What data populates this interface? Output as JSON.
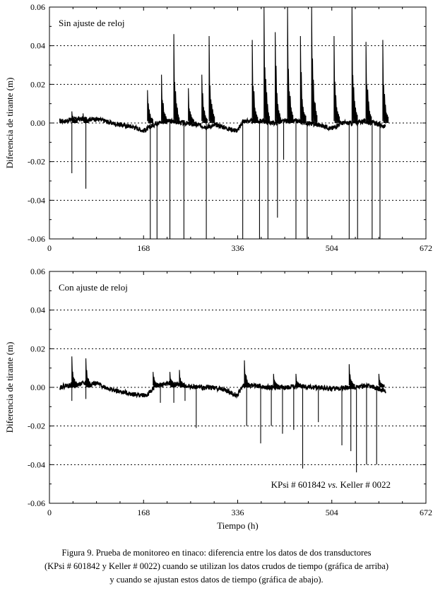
{
  "chart_data": [
    {
      "type": "line",
      "annotation": "Sin ajuste de reloj",
      "ylabel": "Diferencia de tirante (m)",
      "xlabel": "",
      "xlim": [
        0,
        672
      ],
      "ylim": [
        -0.06,
        0.06
      ],
      "x_ticks": [
        0,
        168,
        336,
        504,
        672
      ],
      "x_tick_labels": [
        "0",
        "168",
        "336",
        "504",
        "672"
      ],
      "y_ticks": [
        -0.06,
        -0.04,
        -0.02,
        0.0,
        0.02,
        0.04,
        0.06
      ],
      "y_tick_labels": [
        "-0.06",
        "-0.04",
        "-0.02",
        "0.00",
        "0.02",
        "0.04",
        "0.06"
      ],
      "grid": "dotted horizontal",
      "baseline": [
        [
          18,
          0.001
        ],
        [
          30,
          0.001
        ],
        [
          40,
          0.002
        ],
        [
          60,
          0.002
        ],
        [
          85,
          0.002
        ],
        [
          100,
          0.001
        ],
        [
          110,
          0.0
        ],
        [
          130,
          -0.001
        ],
        [
          150,
          -0.002
        ],
        [
          168,
          -0.004
        ],
        [
          175,
          -0.003
        ],
        [
          190,
          0.0
        ],
        [
          215,
          0.001
        ],
        [
          240,
          0.0
        ],
        [
          265,
          -0.001
        ],
        [
          280,
          -0.002
        ],
        [
          300,
          -0.001
        ],
        [
          310,
          -0.002
        ],
        [
          320,
          -0.003
        ],
        [
          336,
          -0.004
        ],
        [
          345,
          0.001
        ],
        [
          360,
          0.001
        ],
        [
          380,
          0.001
        ],
        [
          400,
          0.0
        ],
        [
          420,
          0.001
        ],
        [
          440,
          0.001
        ],
        [
          460,
          0.0
        ],
        [
          480,
          -0.001
        ],
        [
          495,
          -0.002
        ],
        [
          504,
          -0.003
        ],
        [
          520,
          0.0
        ],
        [
          540,
          0.0
        ],
        [
          560,
          0.001
        ],
        [
          580,
          0.0
        ],
        [
          600,
          -0.002
        ]
      ],
      "up_spikes": [
        [
          40,
          0.006
        ],
        [
          60,
          0.005
        ],
        [
          175,
          0.017
        ],
        [
          200,
          0.025
        ],
        [
          222,
          0.046
        ],
        [
          248,
          0.018
        ],
        [
          272,
          0.025
        ],
        [
          285,
          0.045
        ],
        [
          362,
          0.043
        ],
        [
          383,
          0.06
        ],
        [
          403,
          0.047
        ],
        [
          425,
          0.06
        ],
        [
          448,
          0.045
        ],
        [
          468,
          0.06
        ],
        [
          508,
          0.045
        ],
        [
          540,
          0.06
        ],
        [
          565,
          0.042
        ],
        [
          595,
          0.043
        ]
      ],
      "down_spikes": [
        [
          40,
          -0.026
        ],
        [
          65,
          -0.034
        ],
        [
          180,
          -0.06
        ],
        [
          192,
          -0.06
        ],
        [
          215,
          -0.06
        ],
        [
          240,
          -0.06
        ],
        [
          280,
          -0.06
        ],
        [
          345,
          -0.06
        ],
        [
          375,
          -0.06
        ],
        [
          390,
          -0.06
        ],
        [
          407,
          -0.049
        ],
        [
          418,
          -0.019
        ],
        [
          440,
          -0.06
        ],
        [
          460,
          -0.06
        ],
        [
          535,
          -0.06
        ],
        [
          550,
          -0.06
        ],
        [
          576,
          -0.06
        ],
        [
          590,
          -0.06
        ]
      ]
    },
    {
      "type": "line",
      "annotation": "Con ajuste de reloj",
      "legend_text": "KPsi # 601842 vs. Keller # 0022",
      "ylabel": "Diferencia de tirante (m)",
      "xlabel": "Tiempo (h)",
      "xlim": [
        0,
        672
      ],
      "ylim": [
        -0.06,
        0.06
      ],
      "x_ticks": [
        0,
        168,
        336,
        504,
        672
      ],
      "x_tick_labels": [
        "0",
        "168",
        "336",
        "504",
        "672"
      ],
      "y_ticks": [
        -0.06,
        -0.04,
        -0.02,
        0.0,
        0.02,
        0.04,
        0.06
      ],
      "y_tick_labels": [
        "-0.06",
        "-0.04",
        "-0.02",
        "0.00",
        "0.02",
        "0.04",
        "0.06"
      ],
      "grid": "dotted horizontal",
      "baseline": [
        [
          18,
          0.0
        ],
        [
          30,
          0.001
        ],
        [
          40,
          0.001
        ],
        [
          60,
          0.002
        ],
        [
          85,
          0.002
        ],
        [
          100,
          0.0
        ],
        [
          120,
          -0.002
        ],
        [
          140,
          -0.003
        ],
        [
          160,
          -0.004
        ],
        [
          175,
          -0.004
        ],
        [
          190,
          0.001
        ],
        [
          215,
          0.002
        ],
        [
          240,
          0.001
        ],
        [
          265,
          0.0
        ],
        [
          290,
          0.0
        ],
        [
          310,
          -0.001
        ],
        [
          325,
          -0.003
        ],
        [
          336,
          -0.004
        ],
        [
          345,
          0.001
        ],
        [
          365,
          0.001
        ],
        [
          385,
          0.0
        ],
        [
          405,
          0.0
        ],
        [
          425,
          0.0
        ],
        [
          445,
          0.001
        ],
        [
          465,
          0.0
        ],
        [
          485,
          0.0
        ],
        [
          504,
          -0.001
        ],
        [
          525,
          0.0
        ],
        [
          545,
          0.0
        ],
        [
          565,
          0.001
        ],
        [
          580,
          0.0
        ],
        [
          600,
          -0.002
        ]
      ],
      "up_spikes": [
        [
          40,
          0.016
        ],
        [
          65,
          0.015
        ],
        [
          185,
          0.008
        ],
        [
          215,
          0.008
        ],
        [
          232,
          0.009
        ],
        [
          348,
          0.014
        ],
        [
          400,
          0.007
        ],
        [
          440,
          0.007
        ],
        [
          535,
          0.012
        ],
        [
          588,
          0.007
        ]
      ],
      "down_spikes": [
        [
          40,
          -0.007
        ],
        [
          65,
          -0.006
        ],
        [
          198,
          -0.008
        ],
        [
          222,
          -0.008
        ],
        [
          242,
          -0.007
        ],
        [
          262,
          -0.021
        ],
        [
          352,
          -0.02
        ],
        [
          377,
          -0.029
        ],
        [
          396,
          -0.02
        ],
        [
          416,
          -0.024
        ],
        [
          436,
          -0.022
        ],
        [
          452,
          -0.042
        ],
        [
          480,
          -0.018
        ],
        [
          522,
          -0.03
        ],
        [
          538,
          -0.033
        ],
        [
          548,
          -0.044
        ],
        [
          566,
          -0.04
        ],
        [
          584,
          -0.04
        ]
      ]
    }
  ],
  "caption": {
    "line1": "Figura 9. Prueba de monitoreo en tinaco: diferencia entre los datos de dos transductores",
    "line2": "(KPsi # 601842 y Keller # 0022) cuando se utilizan los datos crudos de tiempo (gráfica de arriba)",
    "line3": "y cuando se ajustan estos datos de tiempo (gráfica de abajo)."
  }
}
